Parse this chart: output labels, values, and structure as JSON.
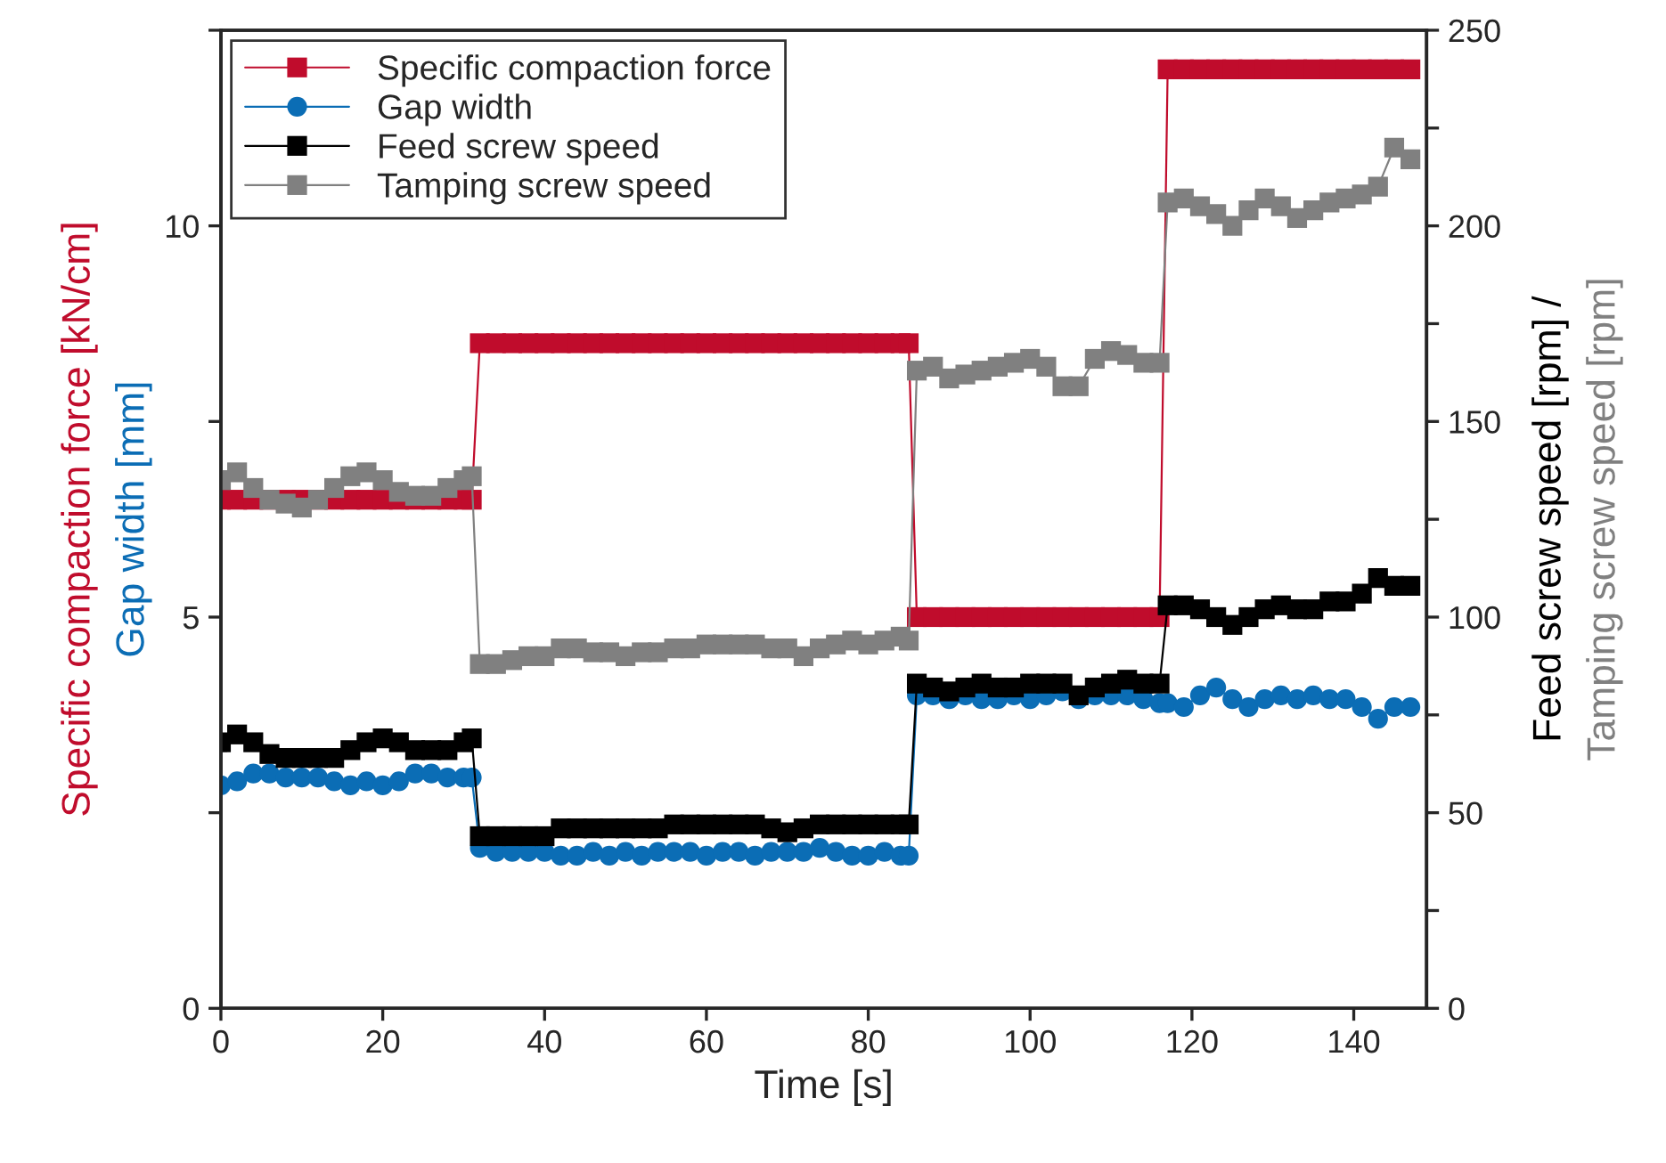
{
  "chart_data": {
    "type": "line",
    "xlabel": "Time [s]",
    "ylabel": "Specific compaction force [kN/cm]\nGap width [mm]",
    "y2label": "Feed screw speed [rpm] /\nTamping screw speed [rpm]",
    "x": [
      0,
      2,
      4,
      6,
      8,
      10,
      12,
      14,
      16,
      18,
      20,
      22,
      24,
      26,
      28,
      30,
      31,
      32,
      34,
      36,
      38,
      40,
      42,
      44,
      46,
      48,
      50,
      52,
      54,
      56,
      58,
      60,
      62,
      64,
      66,
      68,
      70,
      72,
      74,
      76,
      78,
      80,
      82,
      84,
      85,
      86,
      88,
      90,
      92,
      94,
      96,
      98,
      100,
      102,
      104,
      106,
      108,
      110,
      112,
      114,
      116,
      117,
      119,
      121,
      123,
      125,
      127,
      129,
      131,
      133,
      135,
      137,
      139,
      141,
      143,
      145,
      147
    ],
    "xlim": [
      0,
      149
    ],
    "xticks": [
      0,
      20,
      40,
      60,
      80,
      100,
      120,
      140
    ],
    "ylim": [
      0,
      12.5
    ],
    "yticks": [
      0,
      {
        "value": 2.5,
        "label": null
      },
      5,
      {
        "value": 7.5,
        "label": null
      },
      10,
      {
        "value": 12.5,
        "label": null
      }
    ],
    "y2lim": [
      0,
      250
    ],
    "y2ticks": [
      0,
      {
        "value": 25,
        "label": null
      },
      50,
      {
        "value": 75,
        "label": null
      },
      100,
      {
        "value": 125,
        "label": null
      },
      150,
      {
        "value": 175,
        "label": null
      },
      200,
      {
        "value": 225,
        "label": null
      },
      250
    ],
    "grid": false,
    "legend": "top left",
    "series": [
      {
        "name": "Specific compaction force",
        "color": "#c00c2c",
        "marker": "square",
        "values": [
          6.5,
          6.5,
          6.5,
          6.5,
          6.5,
          6.5,
          6.5,
          6.5,
          6.5,
          6.5,
          6.5,
          6.5,
          6.5,
          6.5,
          6.5,
          6.5,
          6.5,
          8.5,
          8.5,
          8.5,
          8.5,
          8.5,
          8.5,
          8.5,
          8.5,
          8.5,
          8.5,
          8.5,
          8.5,
          8.5,
          8.5,
          8.5,
          8.5,
          8.5,
          8.5,
          8.5,
          8.5,
          8.5,
          8.5,
          8.5,
          8.5,
          8.5,
          8.5,
          8.5,
          8.5,
          5,
          5,
          5,
          5,
          5,
          5,
          5,
          5,
          5,
          5,
          5,
          5,
          5,
          5,
          5,
          5,
          12,
          12,
          12,
          12,
          12,
          12,
          12,
          12,
          12,
          12,
          12,
          12,
          12,
          12,
          12,
          12
        ]
      },
      {
        "name": "Gap width",
        "color": "#0b6db5",
        "marker": "circle",
        "values": [
          2.85,
          2.9,
          3.0,
          3.0,
          2.95,
          2.95,
          2.95,
          2.9,
          2.85,
          2.9,
          2.85,
          2.9,
          3.0,
          3.0,
          2.95,
          2.95,
          2.95,
          2.05,
          2.0,
          2.0,
          2.0,
          2.0,
          1.95,
          1.95,
          2.0,
          1.95,
          2.0,
          1.95,
          2.0,
          2.0,
          2.0,
          1.95,
          2.0,
          2.0,
          1.95,
          2.0,
          2.0,
          2.0,
          2.05,
          2.0,
          1.95,
          1.95,
          2.0,
          1.95,
          1.95,
          4.0,
          4.0,
          3.95,
          4.0,
          3.95,
          3.95,
          4.0,
          3.95,
          4.0,
          4.05,
          3.95,
          4.0,
          4.0,
          4.0,
          3.95,
          3.9,
          3.9,
          3.85,
          4.0,
          4.1,
          3.95,
          3.85,
          3.95,
          4.0,
          3.95,
          4.0,
          3.95,
          3.95,
          3.85,
          3.7,
          3.85,
          3.85
        ]
      },
      {
        "name": "Feed screw speed",
        "color": "#000000",
        "marker": "square",
        "axis": "y2",
        "values": [
          68,
          70,
          68,
          65,
          64,
          64,
          64,
          64,
          66,
          68,
          69,
          68,
          66,
          66,
          66,
          68,
          69,
          44,
          44,
          44,
          44,
          44,
          46,
          46,
          46,
          46,
          46,
          46,
          46,
          47,
          47,
          47,
          47,
          47,
          47,
          46,
          45,
          46,
          47,
          47,
          47,
          47,
          47,
          47,
          47,
          83,
          82,
          81,
          82,
          83,
          82,
          82,
          83,
          83,
          83,
          80,
          82,
          83,
          84,
          83,
          83,
          103,
          103,
          102,
          100,
          98,
          100,
          102,
          103,
          102,
          102,
          104,
          104,
          106,
          110,
          108,
          108
        ]
      },
      {
        "name": "Tamping screw speed",
        "color": "#808080",
        "marker": "square",
        "axis": "y2",
        "values": [
          135,
          137,
          133,
          130,
          129,
          128,
          130,
          133,
          136,
          137,
          135,
          132,
          131,
          131,
          133,
          135,
          136,
          88,
          88,
          89,
          90,
          90,
          92,
          92,
          91,
          91,
          90,
          91,
          91,
          92,
          92,
          93,
          93,
          93,
          93,
          92,
          92,
          90,
          92,
          93,
          94,
          93,
          94,
          95,
          94,
          163,
          164,
          161,
          162,
          163,
          164,
          165,
          166,
          164,
          159,
          159,
          166,
          168,
          167,
          165,
          165,
          206,
          207,
          205,
          203,
          200,
          204,
          207,
          205,
          202,
          204,
          206,
          207,
          208,
          210,
          220,
          217
        ]
      }
    ]
  }
}
